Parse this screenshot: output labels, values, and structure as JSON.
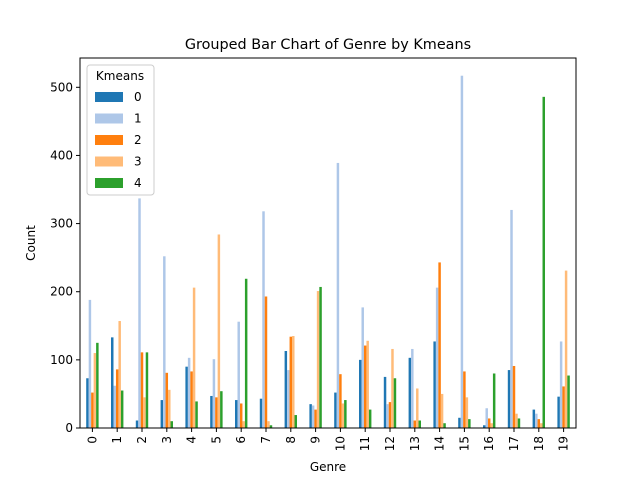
{
  "chart_data": {
    "type": "bar",
    "title": "Grouped Bar Chart of Genre by Kmeans",
    "xlabel": "Genre",
    "ylabel": "Count",
    "ylim": [
      0,
      543
    ],
    "yticks": [
      0,
      100,
      200,
      300,
      400,
      500
    ],
    "grid": false,
    "legend": {
      "title": "Kmeans",
      "placement": "top-left"
    },
    "categories": [
      "0",
      "1",
      "2",
      "3",
      "4",
      "5",
      "6",
      "7",
      "8",
      "9",
      "10",
      "11",
      "12",
      "13",
      "14",
      "15",
      "16",
      "17",
      "18",
      "19"
    ],
    "series": [
      {
        "name": "0",
        "color": "#1f77b4",
        "values": [
          73,
          133,
          11,
          41,
          90,
          47,
          41,
          43,
          113,
          35,
          52,
          100,
          75,
          103,
          127,
          15,
          4,
          85,
          27,
          46
        ]
      },
      {
        "name": "1",
        "color": "#aec7e8",
        "values": [
          188,
          62,
          337,
          252,
          103,
          101,
          156,
          318,
          85,
          33,
          389,
          177,
          35,
          116,
          206,
          517,
          29,
          320,
          21,
          127
        ]
      },
      {
        "name": "2",
        "color": "#ff7f0e",
        "values": [
          52,
          86,
          111,
          81,
          83,
          45,
          36,
          193,
          134,
          27,
          79,
          121,
          38,
          11,
          243,
          83,
          14,
          91,
          13,
          61
        ]
      },
      {
        "name": "3",
        "color": "#ffbb78",
        "values": [
          110,
          157,
          45,
          56,
          206,
          284,
          10,
          10,
          135,
          201,
          36,
          128,
          116,
          58,
          50,
          45,
          7,
          21,
          7,
          231
        ]
      },
      {
        "name": "4",
        "color": "#2ca02c",
        "values": [
          125,
          55,
          111,
          10,
          39,
          54,
          219,
          4,
          19,
          207,
          41,
          27,
          73,
          11,
          7,
          13,
          80,
          14,
          486,
          77
        ]
      }
    ]
  }
}
